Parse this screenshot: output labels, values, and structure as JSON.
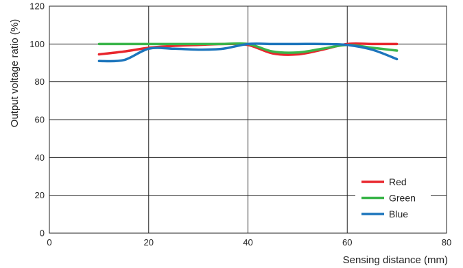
{
  "chart_data": {
    "type": "line",
    "title": "",
    "xlabel": "Sensing distance (mm)",
    "ylabel": "Output voltage ratio (%)",
    "xlim": [
      0,
      80
    ],
    "ylim": [
      0,
      120
    ],
    "x_ticks": [
      0,
      20,
      40,
      60,
      80
    ],
    "y_ticks": [
      0,
      20,
      40,
      60,
      80,
      100,
      120
    ],
    "grid": true,
    "legend_position": "bottom-right",
    "series": [
      {
        "name": "Red",
        "color": "#e8262d",
        "points": [
          [
            10,
            94.5
          ],
          [
            15,
            96
          ],
          [
            20,
            98
          ],
          [
            25,
            99
          ],
          [
            30,
            99.5
          ],
          [
            35,
            100
          ],
          [
            40,
            99.5
          ],
          [
            45,
            95
          ],
          [
            50,
            94.5
          ],
          [
            55,
            97
          ],
          [
            60,
            100
          ],
          [
            65,
            100
          ],
          [
            70,
            100
          ]
        ]
      },
      {
        "name": "Green",
        "color": "#3ab54a",
        "points": [
          [
            10,
            100
          ],
          [
            15,
            100
          ],
          [
            20,
            100
          ],
          [
            25,
            100
          ],
          [
            30,
            100
          ],
          [
            35,
            100
          ],
          [
            40,
            100
          ],
          [
            45,
            96
          ],
          [
            50,
            95.5
          ],
          [
            55,
            97.5
          ],
          [
            60,
            99.5
          ],
          [
            65,
            98
          ],
          [
            70,
            96.5
          ]
        ]
      },
      {
        "name": "Blue",
        "color": "#1c75bc",
        "points": [
          [
            10,
            91
          ],
          [
            15,
            91.5
          ],
          [
            20,
            97.5
          ],
          [
            25,
            97.5
          ],
          [
            30,
            97
          ],
          [
            35,
            97.5
          ],
          [
            40,
            100
          ],
          [
            45,
            100
          ],
          [
            50,
            100
          ],
          [
            55,
            100
          ],
          [
            60,
            99.5
          ],
          [
            65,
            97
          ],
          [
            70,
            92
          ]
        ]
      }
    ]
  }
}
